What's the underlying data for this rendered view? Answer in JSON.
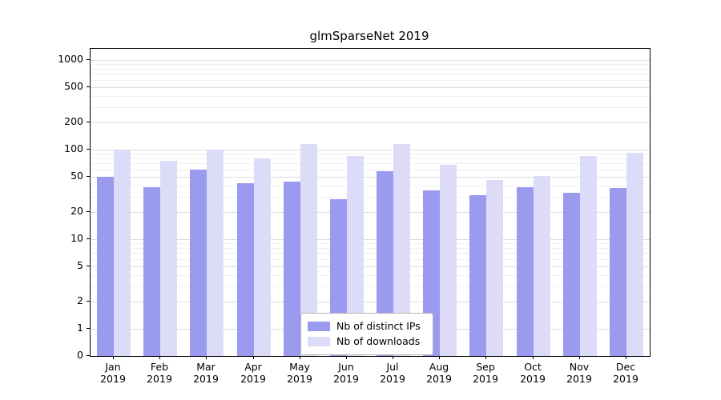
{
  "title": "glmSparseNet 2019",
  "colors": {
    "distinct_ips": "#9a9aee",
    "downloads": "#dcdcf9",
    "grid_major": "#dcdcdc",
    "grid_minor": "#f0f0f0",
    "axis": "#000000",
    "background": "#ffffff"
  },
  "legend": {
    "items": [
      {
        "label": "Nb of distinct IPs",
        "color": "#9a9aee"
      },
      {
        "label": "Nb of downloads",
        "color": "#dcdcf9"
      }
    ]
  },
  "chart_data": {
    "type": "bar",
    "title": "glmSparseNet 2019",
    "categories": [
      "Jan",
      "Feb",
      "Mar",
      "Apr",
      "May",
      "Jun",
      "Jul",
      "Aug",
      "Sep",
      "Oct",
      "Nov",
      "Dec"
    ],
    "category_year": "2019",
    "series": [
      {
        "name": "Nb of distinct IPs",
        "color": "#9a9aee",
        "values": [
          50,
          38,
          60,
          42,
          44,
          28,
          57,
          35,
          31,
          38,
          33,
          37
        ]
      },
      {
        "name": "Nb of downloads",
        "color": "#dcdcf9",
        "values": [
          100,
          75,
          100,
          80,
          115,
          85,
          115,
          68,
          46,
          51,
          84,
          92
        ]
      }
    ],
    "xlabel": "",
    "ylabel": "",
    "y_scale": "log",
    "y_ticks": [
      0,
      1,
      2,
      5,
      10,
      20,
      50,
      100,
      200,
      500,
      1000
    ],
    "y_minor_gridlines": [
      3,
      4,
      6,
      7,
      8,
      9,
      30,
      40,
      60,
      70,
      80,
      90,
      300,
      400,
      600,
      700,
      800,
      900
    ],
    "ylim": [
      0,
      1100
    ],
    "grid": true,
    "legend_position": "inside-bottom-center"
  }
}
